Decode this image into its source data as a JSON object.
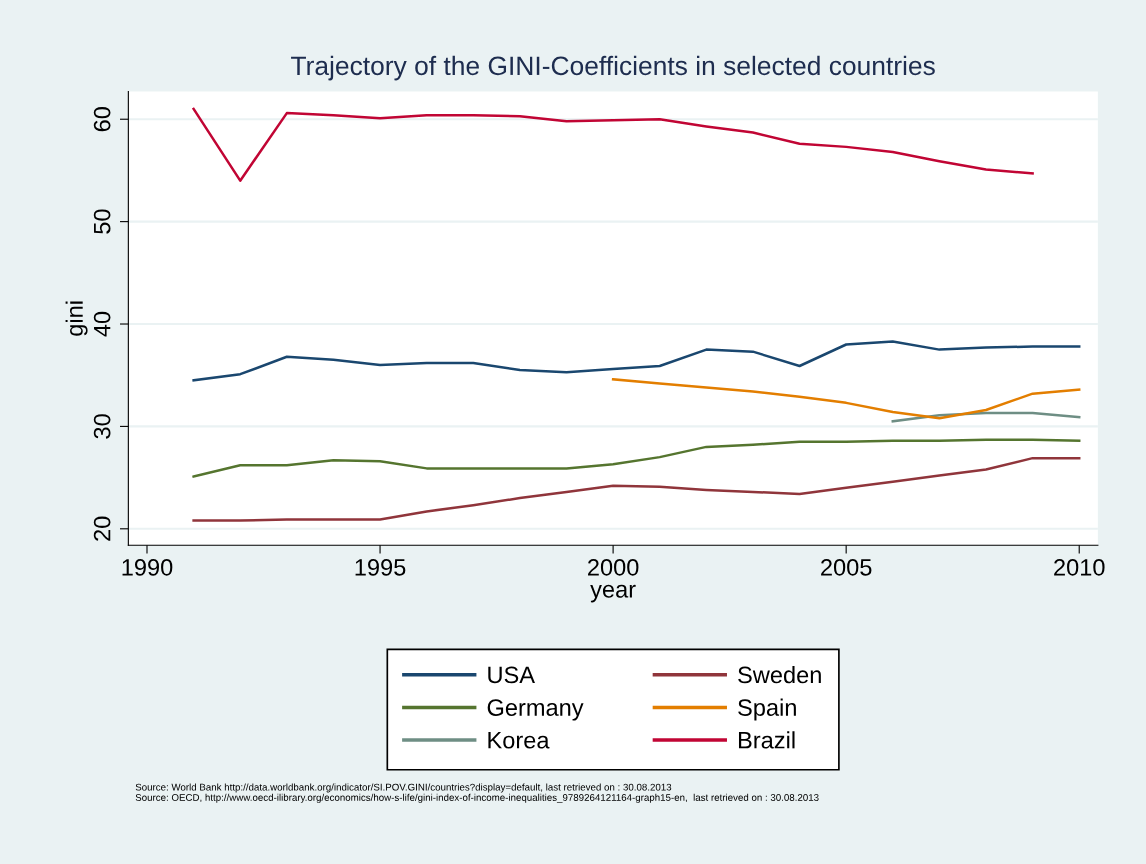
{
  "chart_data": {
    "type": "line",
    "title": "Trajectory of the GINI-Coefficients in selected countries",
    "xlabel": "year",
    "ylabel": "gini",
    "x": [
      1991,
      1992,
      1993,
      1994,
      1995,
      1996,
      1997,
      1998,
      1999,
      2000,
      2001,
      2002,
      2003,
      2004,
      2005,
      2006,
      2007,
      2008,
      2009,
      2010
    ],
    "series": [
      {
        "name": "USA",
        "color": "#1a476f",
        "values": [
          34.5,
          35.1,
          36.8,
          36.5,
          36.0,
          36.2,
          36.2,
          35.5,
          35.3,
          35.6,
          35.9,
          37.5,
          37.3,
          35.9,
          38.0,
          38.3,
          37.5,
          37.7,
          37.8,
          37.8
        ]
      },
      {
        "name": "Germany",
        "color": "#55752f",
        "values": [
          25.1,
          26.2,
          26.2,
          26.7,
          26.6,
          25.9,
          25.9,
          25.9,
          25.9,
          26.3,
          27.0,
          28.0,
          28.2,
          28.5,
          28.5,
          28.6,
          28.6,
          28.7,
          28.7,
          28.6
        ]
      },
      {
        "name": "Korea",
        "color": "#6e8e84",
        "x": [
          2006,
          2007,
          2008,
          2009,
          2010
        ],
        "values": [
          30.5,
          31.1,
          31.3,
          31.3,
          30.9
        ]
      },
      {
        "name": "Sweden",
        "color": "#90353b",
        "values": [
          20.8,
          20.8,
          20.9,
          20.9,
          20.9,
          21.7,
          22.3,
          23.0,
          23.6,
          24.2,
          24.1,
          23.8,
          23.6,
          23.4,
          24.0,
          24.6,
          25.2,
          25.8,
          26.9,
          26.9
        ]
      },
      {
        "name": "Spain",
        "color": "#e37e00",
        "x": [
          2000,
          2001,
          2002,
          2003,
          2004,
          2005,
          2006,
          2007,
          2008,
          2009,
          2010
        ],
        "values": [
          34.6,
          34.2,
          33.8,
          33.4,
          32.9,
          32.3,
          31.4,
          30.8,
          31.6,
          33.2,
          33.6
        ]
      },
      {
        "name": "Brazil",
        "color": "#c10534",
        "x": [
          1991,
          1992,
          1993,
          1994,
          1995,
          1996,
          1997,
          1998,
          1999,
          2000,
          2001,
          2002,
          2003,
          2004,
          2005,
          2006,
          2007,
          2008,
          2009
        ],
        "values": [
          61.0,
          54.0,
          60.6,
          60.4,
          60.1,
          60.4,
          60.4,
          60.3,
          59.8,
          59.9,
          60.0,
          59.3,
          58.7,
          57.6,
          57.3,
          56.8,
          55.9,
          55.1,
          54.7
        ]
      }
    ],
    "xlim": [
      1989.6,
      2010.4
    ],
    "xticks": [
      1990,
      1995,
      2000,
      2005,
      2010
    ],
    "ylim": [
      18.4,
      62.7
    ],
    "yticks": [
      20,
      30,
      40,
      50,
      60
    ],
    "grid": "y",
    "legend": "bottom",
    "marker": "none",
    "line_style": "solid",
    "annotations": [
      "Source: World Bank http://data.worldbank.org/indicator/SI.POV.GINI/countries?display=default, last retrieved on : 30.08.2013",
      "Source: OECD, http://www.oecd-ilibrary.org/economics/how-s-life/gini-index-of-income-inequalities_9789264121164-graph15-en,  last retrieved on : 30.08.2013"
    ]
  }
}
